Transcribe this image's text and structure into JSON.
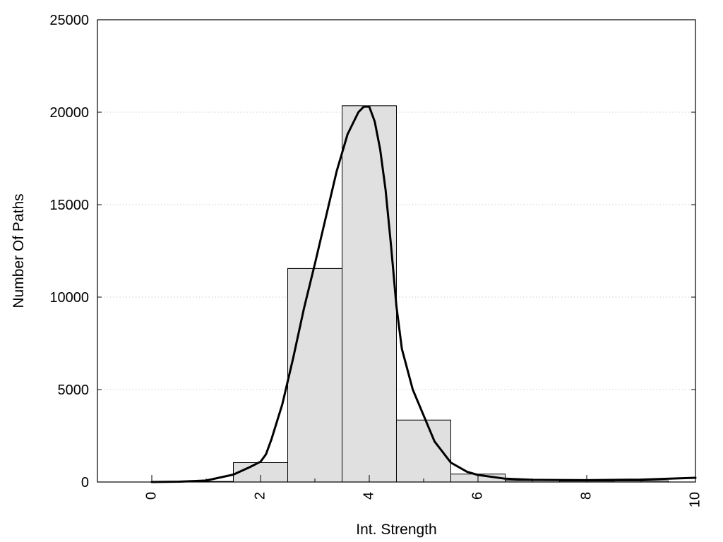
{
  "chart_data": {
    "type": "bar",
    "title": "",
    "xlabel": "Int. Strength",
    "ylabel": "Number Of Paths",
    "xlim": [
      -1,
      10
    ],
    "ylim": [
      0,
      25000
    ],
    "x_ticks": [
      0,
      2,
      4,
      6,
      8,
      10
    ],
    "y_ticks": [
      0,
      5000,
      10000,
      15000,
      20000,
      25000
    ],
    "grid": "horizontal dotted",
    "legend": "none",
    "bar_color": "#e0e0e0",
    "bar_edge_color": "#000000",
    "line_color": "#000000",
    "series": [
      {
        "type": "bar",
        "bin_width": 1,
        "x": [
          0,
          1,
          2,
          3,
          4,
          5,
          6,
          7,
          8,
          9
        ],
        "values": [
          0,
          30,
          1050,
          11550,
          20350,
          3350,
          430,
          80,
          50,
          60
        ]
      },
      {
        "type": "line",
        "x": [
          0,
          0.5,
          1.0,
          1.5,
          1.8,
          2.0,
          2.1,
          2.2,
          2.4,
          2.6,
          2.8,
          3.0,
          3.2,
          3.4,
          3.6,
          3.8,
          3.9,
          4.0,
          4.1,
          4.2,
          4.3,
          4.4,
          4.5,
          4.6,
          4.8,
          5.0,
          5.2,
          5.5,
          5.8,
          6.0,
          6.5,
          7.0,
          8.0,
          9.0,
          10.0
        ],
        "values": [
          0,
          20,
          80,
          400,
          800,
          1100,
          1500,
          2300,
          4200,
          6700,
          9400,
          11800,
          14300,
          16800,
          18800,
          20000,
          20300,
          20300,
          19500,
          18000,
          15800,
          12800,
          9500,
          7200,
          5000,
          3600,
          2200,
          1050,
          550,
          380,
          180,
          120,
          100,
          130,
          230
        ]
      }
    ]
  }
}
